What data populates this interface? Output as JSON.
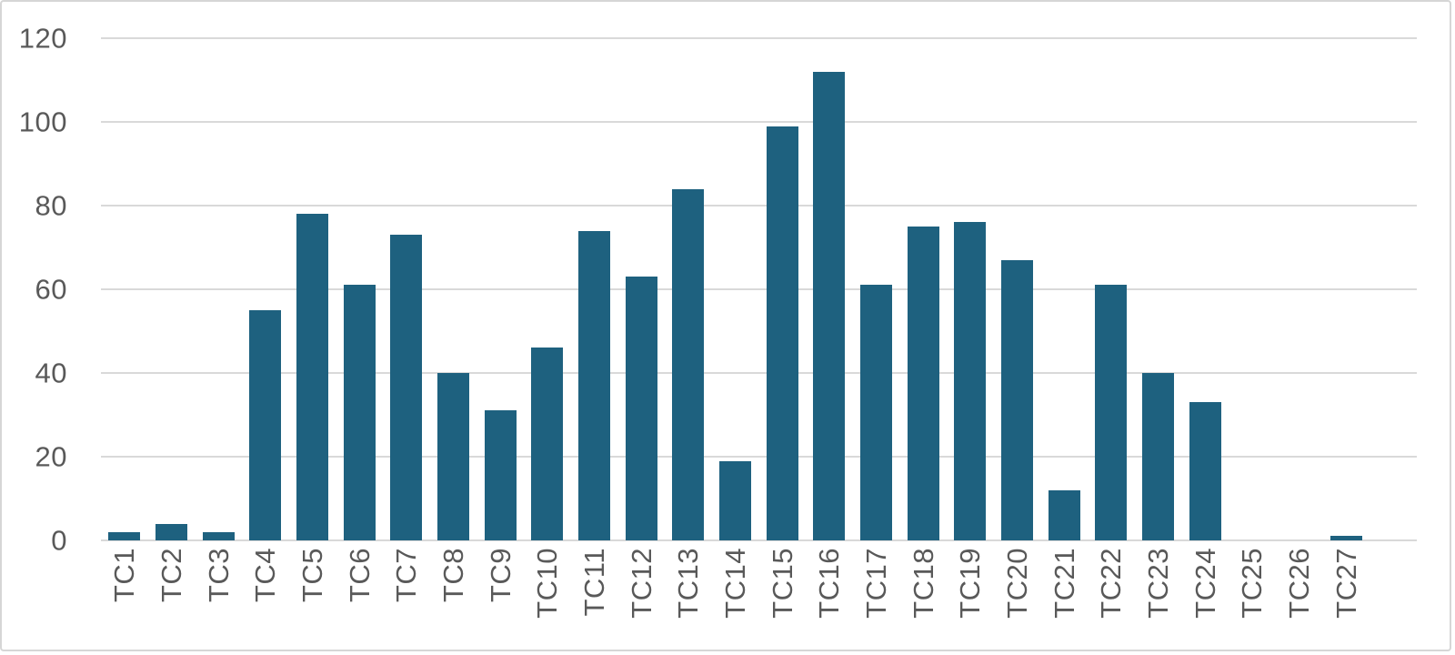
{
  "chart_data": {
    "type": "bar",
    "title": "",
    "xlabel": "",
    "ylabel": "",
    "categories": [
      "TC1",
      "TC2",
      "TC3",
      "TC4",
      "TC5",
      "TC6",
      "TC7",
      "TC8",
      "TC9",
      "TC10",
      "TC11",
      "TC12",
      "TC13",
      "TC14",
      "TC15",
      "TC16",
      "TC17",
      "TC18",
      "TC19",
      "TC20",
      "TC21",
      "TC22",
      "TC23",
      "TC24",
      "TC25",
      "TC26",
      "TC27"
    ],
    "values": [
      2,
      4,
      2,
      55,
      78,
      61,
      73,
      40,
      31,
      46,
      74,
      63,
      84,
      19,
      99,
      112,
      61,
      75,
      76,
      67,
      12,
      61,
      40,
      33,
      0,
      0,
      1
    ],
    "ylim": [
      0,
      120
    ],
    "yticks": [
      0,
      20,
      40,
      60,
      80,
      100,
      120
    ],
    "grid": "horizontal",
    "legend": "none",
    "x_label_rotation_degrees": 90,
    "colors": {
      "bar": "#1e617f",
      "gridline": "#d9d9d9",
      "axis_text": "#595959",
      "background": "#ffffff",
      "border": "#d6d6d6"
    }
  }
}
